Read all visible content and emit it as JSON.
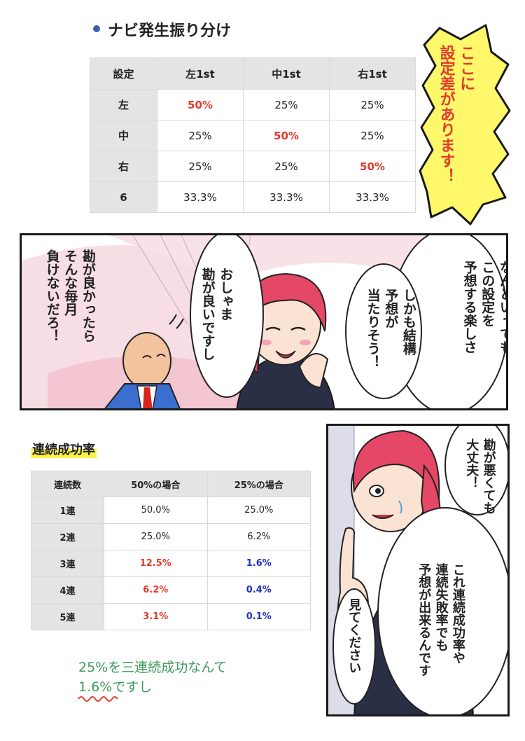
{
  "title": "ナビ発生振り分け",
  "callout": "ここに\n設定差があります！",
  "nav_table": {
    "headers": [
      "設定",
      "左1st",
      "中1st",
      "右1st"
    ],
    "rows": [
      [
        "左",
        "50%",
        "25%",
        "25%"
      ],
      [
        "中",
        "25%",
        "50%",
        "25%"
      ],
      [
        "右",
        "25%",
        "25%",
        "50%"
      ],
      [
        "6",
        "33.3%",
        "33.3%",
        "33.3%"
      ]
    ]
  },
  "panel1": {
    "speech_right": "なんといっても\nこの設定を\n予想する楽しさ",
    "speech_right_inner": "しかも結構\n予想が\n当たりそう！",
    "speech_middle": "おしゃま\n勘が良いですし",
    "speech_left": "勘が良かったら\nそんな毎月\n負けないだろ！"
  },
  "section2_label": "連続成功率",
  "streak_table": {
    "headers": [
      "連続数",
      "50%の場合",
      "25%の場合"
    ],
    "rows": [
      [
        "1連",
        "50.0%",
        "25.0%"
      ],
      [
        "2連",
        "25.0%",
        "6.2%"
      ],
      [
        "3連",
        "12.5%",
        "1.6%"
      ],
      [
        "4連",
        "6.2%",
        "0.4%"
      ],
      [
        "5連",
        "3.1%",
        "0.1%"
      ]
    ]
  },
  "caption": "25%を三連続成功なんて\n1.6%ですし",
  "panel2": {
    "speech_top": "勘が悪くても\n大丈夫！",
    "speech_main": "これ連続成功率や\n連続失敗率でも\n予想が出来るんです",
    "speech_bottom": "見てください"
  },
  "colors": {
    "highlight_red": "#e23b2e",
    "highlight_blue": "#2030c0",
    "callout_fill": "#fff86a",
    "caption_green": "#3e9a5c",
    "label_marker": "#fff34a"
  }
}
